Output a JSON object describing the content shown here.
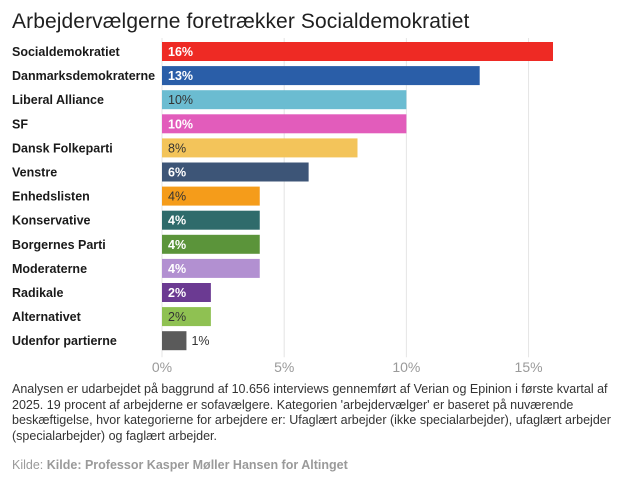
{
  "chart_data": {
    "type": "bar",
    "orientation": "horizontal",
    "title": "Arbejdervælgerne foretrækker Socialdemokratiet",
    "xlim": [
      0,
      17
    ],
    "ticks": [
      0,
      5,
      10,
      15
    ],
    "tick_labels": [
      "0%",
      "5%",
      "10%",
      "15%"
    ],
    "grid": true,
    "categories": [
      "Socialdemokratiet",
      "Danmarksdemokraterne",
      "Liberal Alliance",
      "SF",
      "Dansk Folkeparti",
      "Venstre",
      "Enhedslisten",
      "Konservative",
      "Borgernes Parti",
      "Moderaterne",
      "Radikale",
      "Alternativet",
      "Udenfor partierne"
    ],
    "values": [
      16,
      13,
      10,
      10,
      8,
      6,
      4,
      4,
      4,
      4,
      2,
      2,
      1
    ],
    "value_labels": [
      "16%",
      "13%",
      "10%",
      "10%",
      "8%",
      "6%",
      "4%",
      "4%",
      "4%",
      "4%",
      "2%",
      "2%",
      "1%"
    ],
    "colors": [
      "#ee2a24",
      "#2a5ea8",
      "#6bbcd1",
      "#e25cbb",
      "#f3c45a",
      "#3d5577",
      "#f59c1a",
      "#2f6b6b",
      "#5b943a",
      "#b290d1",
      "#6b3a92",
      "#8fc152",
      "#5a5a5a"
    ],
    "label_colors": [
      "#ffffff",
      "#ffffff",
      "#333333",
      "#ffffff",
      "#333333",
      "#ffffff",
      "#333333",
      "#ffffff",
      "#ffffff",
      "#ffffff",
      "#ffffff",
      "#333333",
      "#333333"
    ]
  },
  "note": "Analysen er udarbejdet på baggrund af 10.656 interviews gennemført af Verian og Epinion i første kvartal af 2025. 19 procent af arbejderne er sofavælgere. Kategorien 'arbejdervælger' er baseret på nuværende beskæftigelse, hvor kategorierne for arbejdere er: Ufaglært arbejder (ikke specialarbejder), ufaglært arbejder (specialarbejder) og faglært arbejder.",
  "source": {
    "prefix": "Kilde:",
    "text": "Kilde: Professor Kasper Møller Hansen for Altinget"
  }
}
